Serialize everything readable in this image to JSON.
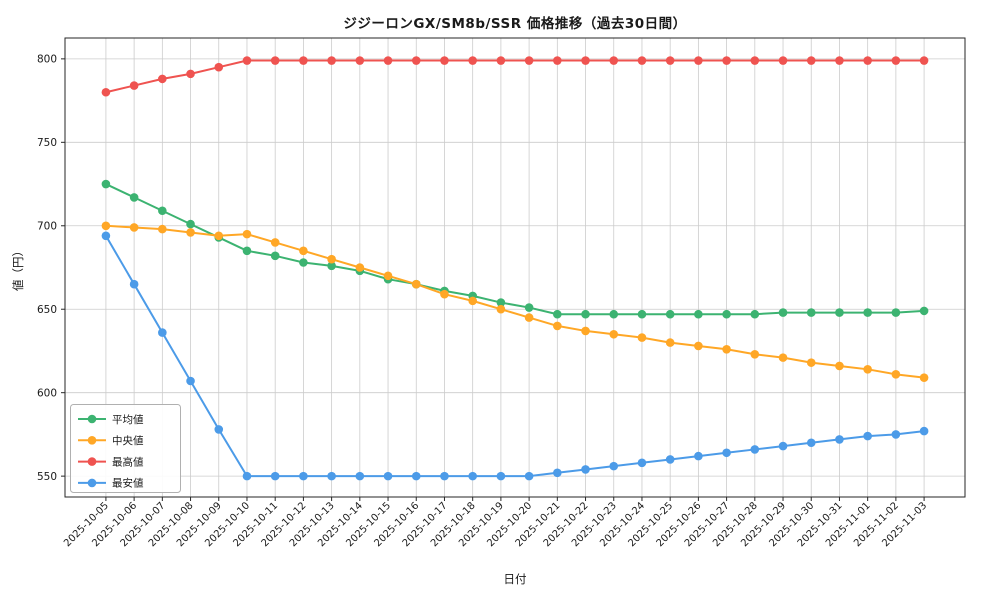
{
  "chart_data": {
    "type": "line",
    "title": "ジジーロンGX/SM8b/SSR 価格推移（過去30日間）",
    "xlabel": "日付",
    "ylabel": "値（円）",
    "grid": true,
    "legend_position": "lower-left",
    "ylim": [
      537.5,
      812.5
    ],
    "yticks": [
      550,
      600,
      650,
      700,
      750,
      800
    ],
    "categories": [
      "2025-10-05",
      "2025-10-06",
      "2025-10-07",
      "2025-10-08",
      "2025-10-09",
      "2025-10-10",
      "2025-10-11",
      "2025-10-12",
      "2025-10-13",
      "2025-10-14",
      "2025-10-15",
      "2025-10-16",
      "2025-10-17",
      "2025-10-18",
      "2025-10-19",
      "2025-10-20",
      "2025-10-21",
      "2025-10-22",
      "2025-10-23",
      "2025-10-24",
      "2025-10-25",
      "2025-10-26",
      "2025-10-27",
      "2025-10-28",
      "2025-10-29",
      "2025-10-30",
      "2025-10-31",
      "2025-11-01",
      "2025-11-02",
      "2025-11-03"
    ],
    "series": [
      {
        "key": "average",
        "name": "平均値",
        "color": "#3cb371",
        "values": [
          725,
          717,
          709,
          701,
          693,
          685,
          682,
          678,
          676,
          673,
          668,
          665,
          661,
          658,
          654,
          651,
          647,
          647,
          647,
          647,
          647,
          647,
          647,
          647,
          648,
          648,
          648,
          648,
          648,
          649
        ]
      },
      {
        "key": "median",
        "name": "中央値",
        "color": "#ffa726",
        "values": [
          700,
          699,
          698,
          696,
          694,
          695,
          690,
          685,
          680,
          675,
          670,
          665,
          659,
          655,
          650,
          645,
          640,
          637,
          635,
          633,
          630,
          628,
          626,
          623,
          621,
          618,
          616,
          614,
          611,
          609
        ]
      },
      {
        "key": "max",
        "name": "最高値",
        "color": "#ef5350",
        "values": [
          780,
          784,
          788,
          791,
          795,
          799,
          799,
          799,
          799,
          799,
          799,
          799,
          799,
          799,
          799,
          799,
          799,
          799,
          799,
          799,
          799,
          799,
          799,
          799,
          799,
          799,
          799,
          799,
          799,
          799
        ]
      },
      {
        "key": "min",
        "name": "最安値",
        "color": "#4c9be8",
        "values": [
          694,
          665,
          636,
          607,
          578,
          550,
          550,
          550,
          550,
          550,
          550,
          550,
          550,
          550,
          550,
          550,
          552,
          554,
          556,
          558,
          560,
          562,
          564,
          566,
          568,
          570,
          572,
          574,
          575,
          577
        ]
      }
    ]
  }
}
